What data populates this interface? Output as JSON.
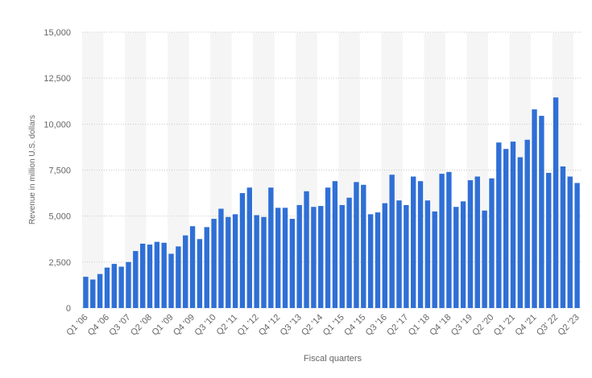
{
  "chart_data": {
    "type": "bar",
    "x_label": "Fiscal quarters",
    "y_label": "Revenue in million U.S. dollars",
    "color": "#2f6fd6",
    "grid": true,
    "ylim": [
      0,
      15000
    ],
    "yticks": [
      0,
      {
        "value": 2500,
        "label": "2,500"
      },
      {
        "value": 5000,
        "label": "5,000"
      },
      {
        "value": 7500,
        "label": "7,500"
      },
      {
        "value": 10000,
        "label": "10,000"
      },
      {
        "value": 12500,
        "label": "12,500"
      },
      {
        "value": 15000,
        "label": "15,000"
      }
    ],
    "categories": [
      "Q1 '06",
      null,
      null,
      "Q4 '06",
      null,
      null,
      "Q3 '07",
      null,
      null,
      "Q2 '08",
      null,
      null,
      "Q1 '09",
      null,
      null,
      "Q4 '09",
      null,
      null,
      "Q3 '10",
      null,
      null,
      "Q2 '11",
      null,
      null,
      "Q1 '12",
      null,
      null,
      "Q4 '12",
      null,
      null,
      "Q3 '13",
      null,
      null,
      "Q2 '14",
      null,
      null,
      "Q1 '15",
      null,
      null,
      "Q4 '15",
      null,
      null,
      "Q3 '16",
      null,
      null,
      "Q2 '17",
      null,
      null,
      "Q1 '18",
      null,
      null,
      "Q4 '18",
      null,
      null,
      "Q3 '19",
      null,
      null,
      "Q2 '20",
      null,
      null,
      "Q1 '21",
      null,
      null,
      "Q4 '21",
      null,
      null,
      "Q3' 22",
      null,
      null,
      "Q2 '23"
    ],
    "values": [
      1700,
      1550,
      1850,
      2200,
      2400,
      2250,
      2500,
      3100,
      3500,
      3450,
      3600,
      3550,
      2950,
      3350,
      3950,
      4450,
      3750,
      4400,
      4850,
      5400,
      4950,
      5100,
      6250,
      6550,
      5050,
      4950,
      6550,
      5450,
      5450,
      4850,
      5600,
      6350,
      5500,
      5550,
      6550,
      6900,
      5600,
      6000,
      6850,
      6700,
      5100,
      5200,
      5700,
      7250,
      5850,
      5600,
      7150,
      6900,
      5850,
      5250,
      7300,
      7400,
      5500,
      5800,
      6950,
      7150,
      5300,
      7050,
      9000,
      8650,
      9050,
      8200,
      9150,
      10800,
      10450,
      7350,
      11450,
      7700,
      7150,
      6800
    ]
  }
}
